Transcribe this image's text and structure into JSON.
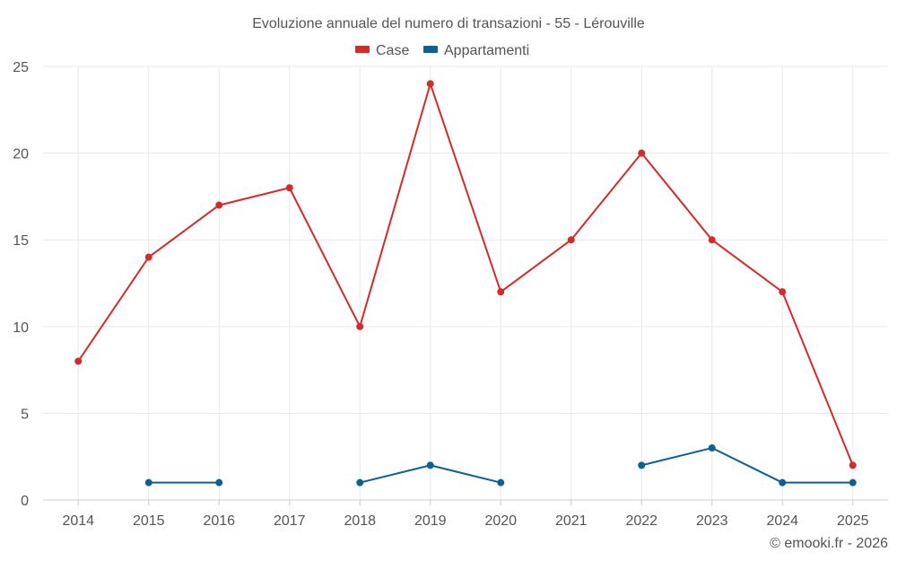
{
  "chart_data": {
    "type": "line",
    "title": "Evoluzione annuale del numero di transazioni - 55 - Lérouville",
    "categories": [
      "2014",
      "2015",
      "2016",
      "2017",
      "2018",
      "2019",
      "2020",
      "2021",
      "2022",
      "2023",
      "2024",
      "2025"
    ],
    "series": [
      {
        "name": "Case",
        "color": "#d42a2a",
        "values": [
          8,
          14,
          17,
          18,
          10,
          24,
          12,
          15,
          20,
          15,
          12,
          2
        ]
      },
      {
        "name": "Appartamenti",
        "color": "#0b6194",
        "values": [
          null,
          1,
          1,
          null,
          1,
          2,
          1,
          null,
          2,
          3,
          1,
          1
        ]
      }
    ],
    "ylim": [
      0,
      25
    ],
    "yticks": [
      0,
      5,
      10,
      15,
      20,
      25
    ],
    "xlabel": "",
    "ylabel": "",
    "grid": true,
    "legend": "top-center"
  },
  "credit": "© emooki.fr - 2026"
}
